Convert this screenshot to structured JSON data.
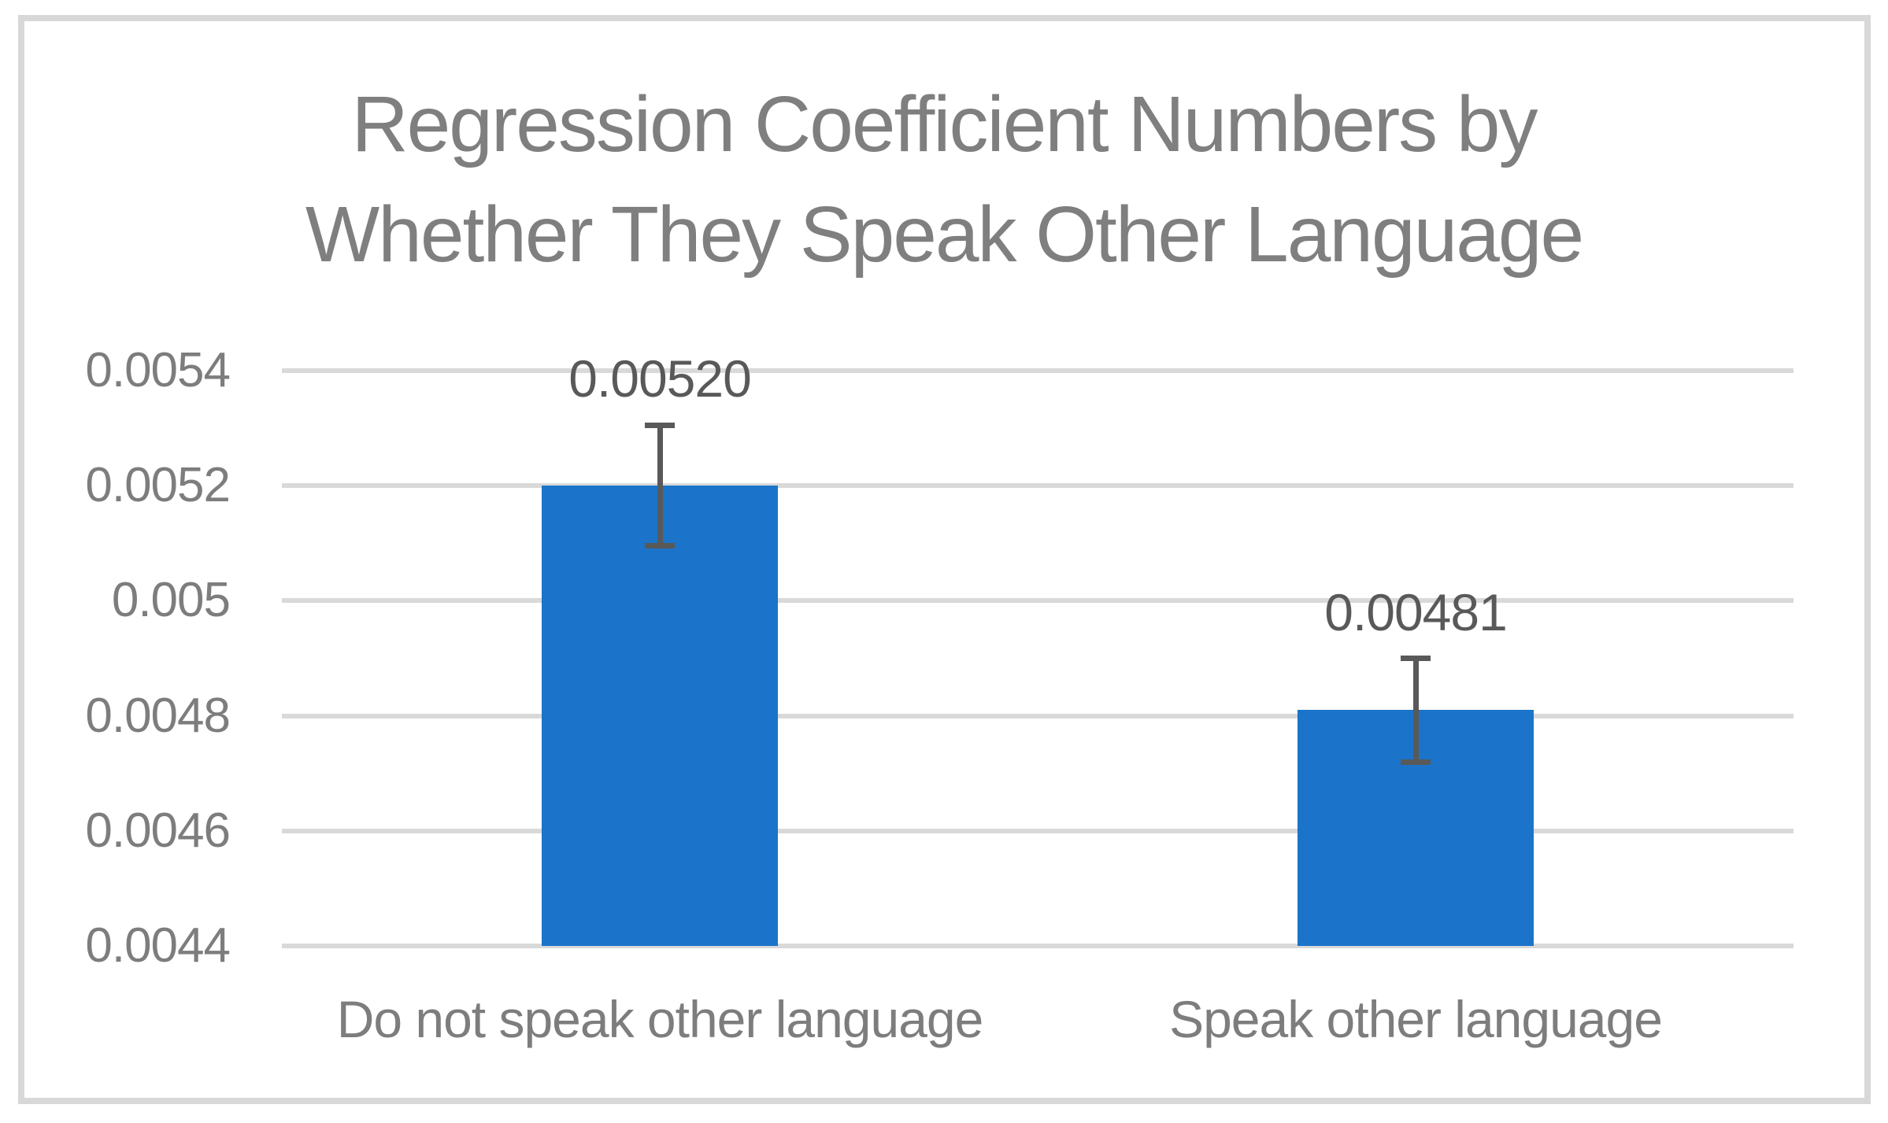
{
  "chart_data": {
    "type": "bar",
    "title": "Regression Coefficient Numbers by Whether They Speak Other Language",
    "categories": [
      "Do not speak other language",
      "Speak other language"
    ],
    "values": [
      0.0052,
      0.00481
    ],
    "data_labels": [
      "0.00520",
      "0.00481"
    ],
    "errors": [
      0.000105,
      9e-05
    ],
    "ylim": [
      0.0044,
      0.0054
    ],
    "yticks": [
      0.0044,
      0.0046,
      0.0048,
      0.005,
      0.0052,
      0.0054
    ],
    "ytick_labels": [
      "0.0044",
      "0.0046",
      "0.0048",
      "0.005",
      "0.0052",
      "0.0054"
    ],
    "grid": true,
    "legend": false,
    "error_bars": "both-directions",
    "colors": {
      "bar": "#1B74C9",
      "gridline": "#D9D9D9",
      "error_bar": "#595959",
      "title_text": "#7F7F7F",
      "tick_text": "#7D7D7D",
      "x_label_text": "#7D7D7D",
      "data_label_text": "#595959",
      "frame_border": "#D8D8D8",
      "background": "#FFFFFF"
    }
  }
}
